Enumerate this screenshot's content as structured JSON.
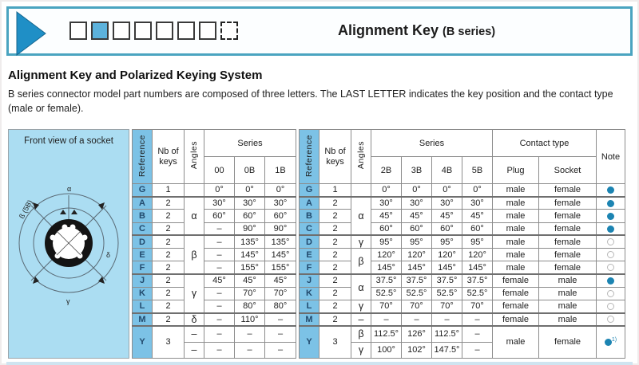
{
  "banner": {
    "title": "Alignment Key",
    "title_suffix": "(B series)",
    "squares": [
      "outline",
      "filled",
      "outline",
      "outline",
      "outline",
      "outline",
      "outline",
      "dashed"
    ],
    "accent_color": "#1f8fc6",
    "border_color": "#4aa4c0"
  },
  "intro": {
    "heading": "Alignment Key and Polarized Keying System",
    "body": "B series connector model part numbers are composed of three letters. The LAST LETTER indicates the key position and the contact type (male or female)."
  },
  "diagram": {
    "title": "Front view of a socket",
    "label_alpha": "α",
    "label_beta": "ß (5B)",
    "label_gamma": "γ",
    "label_delta": "δ"
  },
  "table": {
    "headers": {
      "reference": "Reference",
      "nb_of_keys": "Nb of keys",
      "angles": "Angles",
      "series": "Series",
      "left_series": [
        "00",
        "0B",
        "1B"
      ],
      "right_series": [
        "2B",
        "3B",
        "4B",
        "5B"
      ],
      "contact_type": "Contact type",
      "plug": "Plug",
      "socket": "Socket",
      "note": "Note"
    },
    "colors": {
      "blue_cell": "#7cc2e6",
      "panel": "#abddf2",
      "note_dot": "#1c84b2"
    },
    "left_rows": [
      {
        "ref": "G",
        "keys": "1",
        "angle": "",
        "angle_span": 1,
        "values": [
          "0°",
          "0°",
          "0°"
        ]
      },
      {
        "ref": "A",
        "keys": "2",
        "angle": "α",
        "angle_span": 3,
        "values": [
          "30°",
          "30°",
          "30°"
        ],
        "group": true
      },
      {
        "ref": "B",
        "keys": "2",
        "values": [
          "60°",
          "60°",
          "60°"
        ]
      },
      {
        "ref": "C",
        "keys": "2",
        "values": [
          "–",
          "90°",
          "90°"
        ]
      },
      {
        "ref": "D",
        "keys": "2",
        "angle": "β",
        "angle_span": 3,
        "values": [
          "–",
          "135°",
          "135°"
        ],
        "group": true
      },
      {
        "ref": "E",
        "keys": "2",
        "values": [
          "–",
          "145°",
          "145°"
        ]
      },
      {
        "ref": "F",
        "keys": "2",
        "values": [
          "–",
          "155°",
          "155°"
        ]
      },
      {
        "ref": "J",
        "keys": "2",
        "angle": "γ",
        "angle_span": 3,
        "values": [
          "45°",
          "45°",
          "45°"
        ],
        "group": true
      },
      {
        "ref": "K",
        "keys": "2",
        "values": [
          "–",
          "70°",
          "70°"
        ]
      },
      {
        "ref": "L",
        "keys": "2",
        "values": [
          "–",
          "80°",
          "80°"
        ]
      },
      {
        "ref": "M",
        "keys": "2",
        "angle": "δ",
        "angle_span": 1,
        "values": [
          "–",
          "110°",
          "–"
        ],
        "group": true
      },
      {
        "ref": "Y",
        "ref_span": 2,
        "keys": "3",
        "keys_span": 2,
        "angle": "–",
        "angle_span": 1,
        "values": [
          "–",
          "–",
          "–"
        ],
        "group": true,
        "tall": true
      },
      {
        "angle": "–",
        "angle_span": 1,
        "values": [
          "–",
          "–",
          "–"
        ],
        "tall": true
      }
    ],
    "right_rows": [
      {
        "ref": "G",
        "keys": "1",
        "angle": "",
        "angle_span": 1,
        "values": [
          "0°",
          "0°",
          "0°",
          "0°"
        ],
        "plug": "male",
        "socket": "female",
        "note": "filled"
      },
      {
        "ref": "A",
        "keys": "2",
        "angle": "α",
        "angle_span": 3,
        "values": [
          "30°",
          "30°",
          "30°",
          "30°"
        ],
        "plug": "male",
        "socket": "female",
        "note": "filled",
        "group": true
      },
      {
        "ref": "B",
        "keys": "2",
        "values": [
          "45°",
          "45°",
          "45°",
          "45°"
        ],
        "plug": "male",
        "socket": "female",
        "note": "filled"
      },
      {
        "ref": "C",
        "keys": "2",
        "values": [
          "60°",
          "60°",
          "60°",
          "60°"
        ],
        "plug": "male",
        "socket": "female",
        "note": "filled"
      },
      {
        "ref": "D",
        "keys": "2",
        "angle": "γ",
        "angle_span": 1,
        "values": [
          "95°",
          "95°",
          "95°",
          "95°"
        ],
        "plug": "male",
        "socket": "female",
        "note": "open",
        "group": true
      },
      {
        "ref": "E",
        "keys": "2",
        "angle": "β",
        "angle_span": 2,
        "values": [
          "120°",
          "120°",
          "120°",
          "120°"
        ],
        "plug": "male",
        "socket": "female",
        "note": "open"
      },
      {
        "ref": "F",
        "keys": "2",
        "values": [
          "145°",
          "145°",
          "145°",
          "145°"
        ],
        "plug": "male",
        "socket": "female",
        "note": "open"
      },
      {
        "ref": "J",
        "keys": "2",
        "angle": "α",
        "angle_span": 2,
        "values": [
          "37.5°",
          "37.5°",
          "37.5°",
          "37.5°"
        ],
        "plug": "female",
        "socket": "male",
        "note": "filled",
        "group": true
      },
      {
        "ref": "K",
        "keys": "2",
        "values": [
          "52.5°",
          "52.5°",
          "52.5°",
          "52.5°"
        ],
        "plug": "female",
        "socket": "male",
        "note": "open"
      },
      {
        "ref": "L",
        "keys": "2",
        "angle": "γ",
        "angle_span": 1,
        "values": [
          "70°",
          "70°",
          "70°",
          "70°"
        ],
        "plug": "female",
        "socket": "male",
        "note": "open"
      },
      {
        "ref": "M",
        "keys": "2",
        "angle": "–",
        "angle_span": 1,
        "values": [
          "–",
          "–",
          "–",
          "–"
        ],
        "plug": "female",
        "socket": "male",
        "note": "open",
        "group": true
      },
      {
        "ref": "Y",
        "ref_span": 2,
        "keys": "3",
        "keys_span": 2,
        "angle": "β",
        "angle_span": 1,
        "values": [
          "112.5°",
          "126°",
          "112.5°",
          "–"
        ],
        "plug": "male",
        "socket": "female",
        "contact_span": 2,
        "note": "filled",
        "note_span": 2,
        "note_sup": "1)",
        "group": true,
        "tall": true
      },
      {
        "angle": "γ",
        "angle_span": 1,
        "values": [
          "100°",
          "102°",
          "147.5°",
          "–"
        ],
        "tall": true
      }
    ]
  }
}
